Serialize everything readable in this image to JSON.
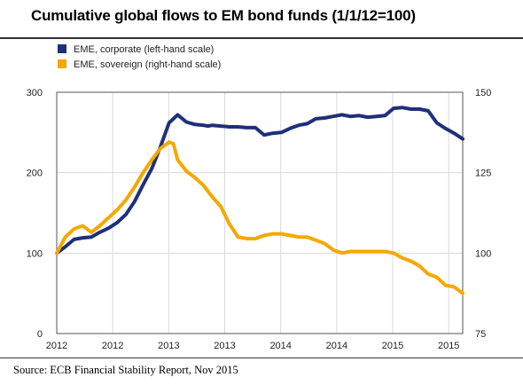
{
  "title": "Cumulative global flows to EM bond funds (1/1/12=100)",
  "source": "Source: ECB Financial Stability Report, Nov 2015",
  "chart_data": {
    "type": "line",
    "title": "Cumulative global flows to EM bond funds (1/1/12=100)",
    "legend_position": "top-left",
    "grid": true,
    "x_tick_labels": [
      "2012",
      "2012",
      "2013",
      "2013",
      "2014",
      "2014",
      "2015",
      "2015"
    ],
    "x_range": [
      0,
      47
    ],
    "left_axis": {
      "ticks": [
        "0",
        "100",
        "200",
        "300"
      ],
      "range": [
        0,
        300
      ]
    },
    "right_axis": {
      "ticks": [
        "75",
        "100",
        "125",
        "150"
      ],
      "range": [
        75,
        150
      ]
    },
    "series": [
      {
        "name": "EME, corporate (left-hand scale)",
        "axis": "left",
        "color": "#1f2f7a",
        "x": [
          0,
          1,
          2,
          3,
          4,
          5,
          6,
          7,
          8,
          9,
          10,
          11,
          12,
          13,
          14,
          15,
          16,
          17,
          17.5,
          18,
          19,
          20,
          21,
          22,
          23,
          24,
          25,
          26,
          27,
          28,
          29,
          30,
          31,
          32,
          33,
          34,
          35,
          36,
          37,
          38,
          39,
          40,
          41,
          42,
          43,
          44,
          45,
          46,
          47
        ],
        "values": [
          100,
          108,
          117,
          119,
          120,
          126,
          131,
          138,
          148,
          164,
          185,
          205,
          232,
          262,
          272,
          263,
          260,
          259,
          258,
          259,
          258,
          257,
          257,
          256,
          256,
          247,
          249,
          250,
          255,
          259,
          261,
          267,
          268,
          270,
          272,
          270,
          271,
          269,
          270,
          271,
          280,
          281,
          279,
          279,
          277,
          262,
          255,
          249,
          242
        ]
      },
      {
        "name": "EME, sovereign (right-hand scale)",
        "axis": "right",
        "color": "#f5a800",
        "x": [
          0,
          1,
          2,
          3,
          4,
          5,
          6,
          7,
          8,
          9,
          10,
          11,
          12,
          13,
          13.5,
          14,
          15,
          16,
          17,
          18,
          19,
          20,
          21,
          22,
          23,
          24,
          25,
          26,
          27,
          28,
          29,
          30,
          31,
          32,
          33,
          34,
          35,
          36,
          37,
          38,
          39,
          40,
          41,
          42,
          43,
          44,
          45,
          46,
          47
        ],
        "values": [
          100,
          105,
          107.5,
          108.5,
          106.5,
          108.5,
          111,
          113.5,
          116.5,
          120.5,
          125,
          129,
          132.5,
          134.5,
          134,
          129,
          125.5,
          123.5,
          121,
          117.5,
          114.5,
          109,
          105,
          104.5,
          104.5,
          105.5,
          106,
          106,
          105.5,
          105,
          105,
          104,
          103,
          101,
          100,
          100.5,
          100.5,
          100.5,
          100.5,
          100.5,
          100,
          98.5,
          97.5,
          96,
          93.5,
          92.5,
          90,
          89.5,
          87.5
        ]
      }
    ]
  }
}
